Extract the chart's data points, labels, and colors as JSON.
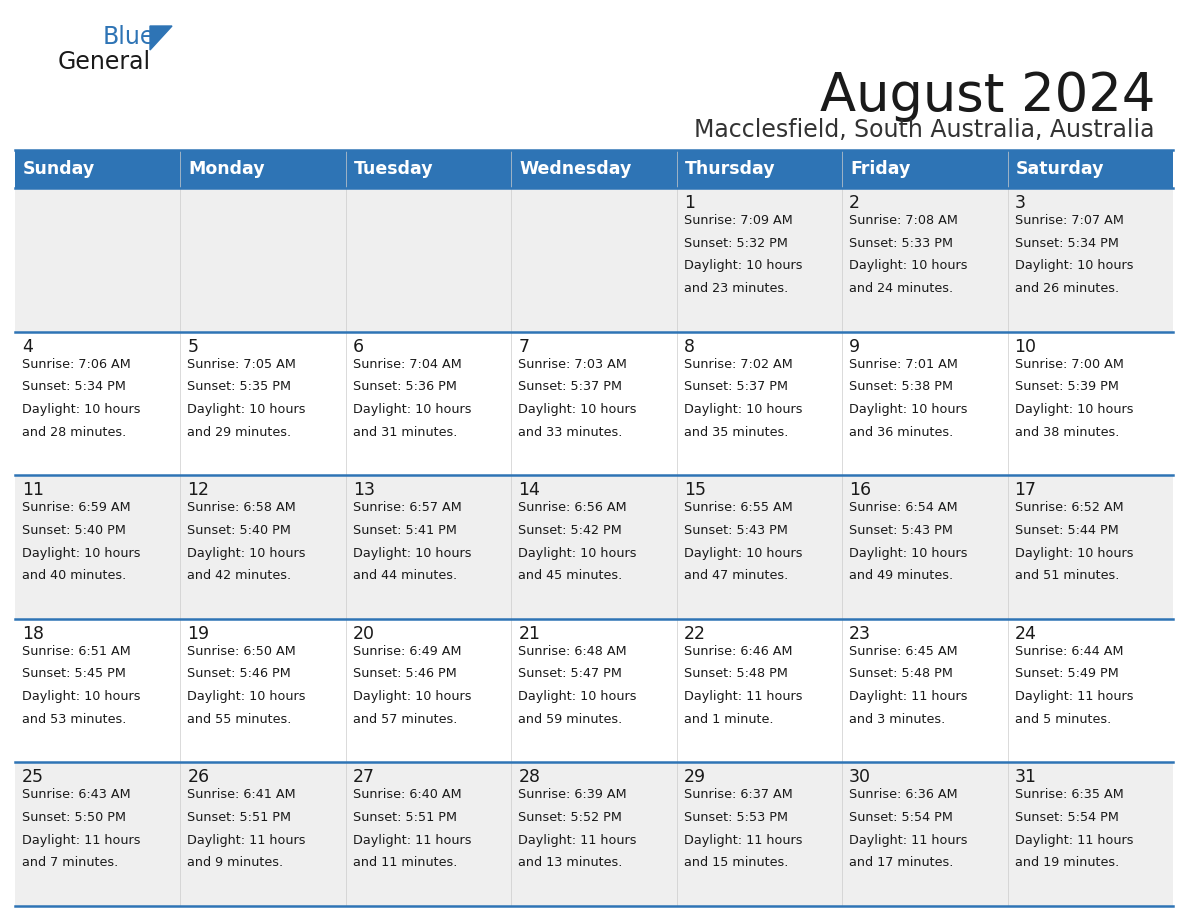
{
  "title": "August 2024",
  "subtitle": "Macclesfield, South Australia, Australia",
  "days_of_week": [
    "Sunday",
    "Monday",
    "Tuesday",
    "Wednesday",
    "Thursday",
    "Friday",
    "Saturday"
  ],
  "header_bg": "#2E74B5",
  "header_text": "#FFFFFF",
  "row_bg_odd": "#EFEFEF",
  "row_bg_even": "#FFFFFF",
  "cell_border": "#2E74B5",
  "day_number_color": "#1A1A1A",
  "info_text_color": "#1A1A1A",
  "title_color": "#1A1A1A",
  "subtitle_color": "#333333",
  "logo_general_color": "#1A1A1A",
  "logo_blue_color": "#2E74B5",
  "calendar_data": [
    [
      null,
      null,
      null,
      null,
      {
        "day": 1,
        "sunrise": "7:09 AM",
        "sunset": "5:32 PM",
        "daylight": "10 hours and 23 minutes."
      },
      {
        "day": 2,
        "sunrise": "7:08 AM",
        "sunset": "5:33 PM",
        "daylight": "10 hours and 24 minutes."
      },
      {
        "day": 3,
        "sunrise": "7:07 AM",
        "sunset": "5:34 PM",
        "daylight": "10 hours and 26 minutes."
      }
    ],
    [
      {
        "day": 4,
        "sunrise": "7:06 AM",
        "sunset": "5:34 PM",
        "daylight": "10 hours and 28 minutes."
      },
      {
        "day": 5,
        "sunrise": "7:05 AM",
        "sunset": "5:35 PM",
        "daylight": "10 hours and 29 minutes."
      },
      {
        "day": 6,
        "sunrise": "7:04 AM",
        "sunset": "5:36 PM",
        "daylight": "10 hours and 31 minutes."
      },
      {
        "day": 7,
        "sunrise": "7:03 AM",
        "sunset": "5:37 PM",
        "daylight": "10 hours and 33 minutes."
      },
      {
        "day": 8,
        "sunrise": "7:02 AM",
        "sunset": "5:37 PM",
        "daylight": "10 hours and 35 minutes."
      },
      {
        "day": 9,
        "sunrise": "7:01 AM",
        "sunset": "5:38 PM",
        "daylight": "10 hours and 36 minutes."
      },
      {
        "day": 10,
        "sunrise": "7:00 AM",
        "sunset": "5:39 PM",
        "daylight": "10 hours and 38 minutes."
      }
    ],
    [
      {
        "day": 11,
        "sunrise": "6:59 AM",
        "sunset": "5:40 PM",
        "daylight": "10 hours and 40 minutes."
      },
      {
        "day": 12,
        "sunrise": "6:58 AM",
        "sunset": "5:40 PM",
        "daylight": "10 hours and 42 minutes."
      },
      {
        "day": 13,
        "sunrise": "6:57 AM",
        "sunset": "5:41 PM",
        "daylight": "10 hours and 44 minutes."
      },
      {
        "day": 14,
        "sunrise": "6:56 AM",
        "sunset": "5:42 PM",
        "daylight": "10 hours and 45 minutes."
      },
      {
        "day": 15,
        "sunrise": "6:55 AM",
        "sunset": "5:43 PM",
        "daylight": "10 hours and 47 minutes."
      },
      {
        "day": 16,
        "sunrise": "6:54 AM",
        "sunset": "5:43 PM",
        "daylight": "10 hours and 49 minutes."
      },
      {
        "day": 17,
        "sunrise": "6:52 AM",
        "sunset": "5:44 PM",
        "daylight": "10 hours and 51 minutes."
      }
    ],
    [
      {
        "day": 18,
        "sunrise": "6:51 AM",
        "sunset": "5:45 PM",
        "daylight": "10 hours and 53 minutes."
      },
      {
        "day": 19,
        "sunrise": "6:50 AM",
        "sunset": "5:46 PM",
        "daylight": "10 hours and 55 minutes."
      },
      {
        "day": 20,
        "sunrise": "6:49 AM",
        "sunset": "5:46 PM",
        "daylight": "10 hours and 57 minutes."
      },
      {
        "day": 21,
        "sunrise": "6:48 AM",
        "sunset": "5:47 PM",
        "daylight": "10 hours and 59 minutes."
      },
      {
        "day": 22,
        "sunrise": "6:46 AM",
        "sunset": "5:48 PM",
        "daylight": "11 hours and 1 minute."
      },
      {
        "day": 23,
        "sunrise": "6:45 AM",
        "sunset": "5:48 PM",
        "daylight": "11 hours and 3 minutes."
      },
      {
        "day": 24,
        "sunrise": "6:44 AM",
        "sunset": "5:49 PM",
        "daylight": "11 hours and 5 minutes."
      }
    ],
    [
      {
        "day": 25,
        "sunrise": "6:43 AM",
        "sunset": "5:50 PM",
        "daylight": "11 hours and 7 minutes."
      },
      {
        "day": 26,
        "sunrise": "6:41 AM",
        "sunset": "5:51 PM",
        "daylight": "11 hours and 9 minutes."
      },
      {
        "day": 27,
        "sunrise": "6:40 AM",
        "sunset": "5:51 PM",
        "daylight": "11 hours and 11 minutes."
      },
      {
        "day": 28,
        "sunrise": "6:39 AM",
        "sunset": "5:52 PM",
        "daylight": "11 hours and 13 minutes."
      },
      {
        "day": 29,
        "sunrise": "6:37 AM",
        "sunset": "5:53 PM",
        "daylight": "11 hours and 15 minutes."
      },
      {
        "day": 30,
        "sunrise": "6:36 AM",
        "sunset": "5:54 PM",
        "daylight": "11 hours and 17 minutes."
      },
      {
        "day": 31,
        "sunrise": "6:35 AM",
        "sunset": "5:54 PM",
        "daylight": "11 hours and 19 minutes."
      }
    ]
  ]
}
